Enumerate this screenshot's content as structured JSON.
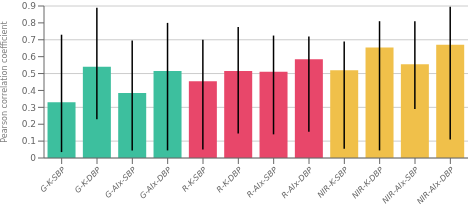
{
  "chart_data": {
    "type": "bar",
    "categories": [
      "G-K-SBP",
      "G-K-DBP",
      "G-AIx-SBP",
      "G-AIx-DBP",
      "R-K-SBP",
      "R-K-DBP",
      "R-AIx-SBP",
      "R-AIx-DBP",
      "NIR-K-SBP",
      "NIR-K-DBP",
      "NIR-AIx-SBP",
      "NIR-AIx-DBP"
    ],
    "values": [
      0.33,
      0.54,
      0.385,
      0.515,
      0.455,
      0.515,
      0.51,
      0.585,
      0.52,
      0.655,
      0.555,
      0.67
    ],
    "err_upper": [
      0.4,
      0.35,
      0.31,
      0.285,
      0.245,
      0.26,
      0.215,
      0.135,
      0.17,
      0.155,
      0.255,
      0.225
    ],
    "err_lower": [
      0.295,
      0.31,
      0.34,
      0.47,
      0.405,
      0.37,
      0.37,
      0.43,
      0.465,
      0.61,
      0.265,
      0.56
    ],
    "colors": [
      "#3dbf9e",
      "#3dbf9e",
      "#3dbf9e",
      "#3dbf9e",
      "#e8476a",
      "#e8476a",
      "#e8476a",
      "#e8476a",
      "#f0c04a",
      "#f0c04a",
      "#f0c04a",
      "#f0c04a"
    ],
    "ylabel": "Pearson correlation coefficient",
    "ylim": [
      0,
      0.9
    ],
    "yticks": [
      0,
      0.1,
      0.2,
      0.3,
      0.4,
      0.5,
      0.6,
      0.7,
      0.8,
      0.9
    ],
    "grid": true
  }
}
